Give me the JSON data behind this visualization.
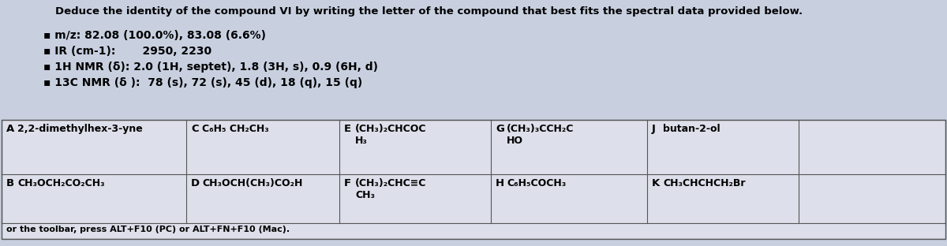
{
  "title": "Deduce the identity of the compound VI by writing the letter of the compound that best fits the spectral data provided below.",
  "bullet_lines": [
    "▪ m/z: 82.08 (100.0%), 83.08 (6.6%)",
    "▪ IR (cm-1):       2950, 2230",
    "▪ 1H NMR (δ): 2.0 (1H, septet), 1.8 (3H, s), 0.9 (6H, d)",
    "▪ 13C NMR (δ ):  78 (s), 72 (s), 45 (d), 18 (q), 15 (q)"
  ],
  "table_row1": [
    {
      "label": "A",
      "text": "2,2-dimethylhex-3-yne"
    },
    {
      "label": "C",
      "text": "C₆H₅ CH₂CH₃"
    },
    {
      "label": "E",
      "text": "(CH₃)₂CHCOC\nH₃"
    },
    {
      "label": "G",
      "text": "(CH₃)₃CCH₂C\nHO"
    },
    {
      "label": "J",
      "text": "butan-2-ol"
    }
  ],
  "table_row2": [
    {
      "label": "B",
      "text": "CH₃OCH₂CO₂CH₃"
    },
    {
      "label": "D",
      "text": "CH₃OCH(CH₃)CO₂H"
    },
    {
      "label": "F",
      "text": "(CH₃)₂CHC≡C\nCH₃"
    },
    {
      "label": "H",
      "text": "C₆H₅COCH₃"
    },
    {
      "label": "K",
      "text": "CH₃CHCHCH₂Br"
    }
  ],
  "footer": "or the toolbar, press ALT+F10 (PC) or ALT+FN+F10 (Mac).",
  "bg_color": "#c8d0e0",
  "table_bg": "#dde0ea",
  "title_fontsize": 9.5,
  "bullet_fontsize": 10,
  "table_fontsize": 9,
  "label_fontsize": 9.5,
  "footer_fontsize": 8
}
